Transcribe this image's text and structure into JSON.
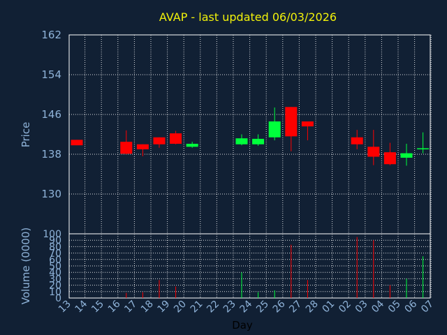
{
  "chart_data": {
    "type": "candlestick",
    "title": "AVAP - last updated 06/03/2026",
    "ylabel": "Price",
    "volume_label": "Volume (0000)",
    "xlabel": "Day",
    "grid": true,
    "colors": {
      "up": "#00ff3c",
      "down": "#ff0000",
      "background": "#112034",
      "title": "#f2f20a",
      "axis_text": "#8fb3d9"
    },
    "price_ylim": [
      122,
      162
    ],
    "price_ticks": [
      162,
      154,
      146,
      138,
      130
    ],
    "volume_ylim": [
      0,
      100
    ],
    "volume_ticks": [
      100,
      90,
      80,
      70,
      60,
      50,
      40,
      30,
      20,
      10,
      0
    ],
    "x_labels": [
      "13",
      "14",
      "15",
      "16",
      "17",
      "18",
      "19",
      "20",
      "21",
      "22",
      "23",
      "24",
      "25",
      "26",
      "27",
      "28",
      "01",
      "02",
      "03",
      "04",
      "05",
      "06",
      "07"
    ],
    "candles": [
      {
        "day": "13",
        "open": 140.9,
        "high": 140.9,
        "low": 139.8,
        "close": 139.8,
        "volume": 0
      },
      {
        "day": "16",
        "open": 140.5,
        "high": 142.8,
        "low": 138.0,
        "close": 138.1,
        "volume": 8
      },
      {
        "day": "17",
        "open": 140.0,
        "high": 140.0,
        "low": 137.6,
        "close": 139.0,
        "volume": 9
      },
      {
        "day": "18",
        "open": 141.4,
        "high": 141.4,
        "low": 139.3,
        "close": 140.0,
        "volume": 28
      },
      {
        "day": "19",
        "open": 142.2,
        "high": 142.7,
        "low": 140.0,
        "close": 140.1,
        "volume": 18
      },
      {
        "day": "20",
        "open": 139.5,
        "high": 140.5,
        "low": 139.3,
        "close": 140.1,
        "volume": 0
      },
      {
        "day": "23",
        "open": 140.0,
        "high": 142.0,
        "low": 139.8,
        "close": 141.2,
        "volume": 40
      },
      {
        "day": "24",
        "open": 140.0,
        "high": 142.0,
        "low": 139.7,
        "close": 141.1,
        "volume": 9
      },
      {
        "day": "25",
        "open": 141.4,
        "high": 147.4,
        "low": 140.8,
        "close": 144.6,
        "volume": 12
      },
      {
        "day": "26",
        "open": 147.5,
        "high": 147.5,
        "low": 138.6,
        "close": 141.6,
        "volume": 83
      },
      {
        "day": "27",
        "open": 144.6,
        "high": 144.6,
        "low": 140.8,
        "close": 143.6,
        "volume": 28
      },
      {
        "day": "02",
        "open": 141.4,
        "high": 142.9,
        "low": 139.0,
        "close": 140.0,
        "volume": 95
      },
      {
        "day": "03",
        "open": 139.5,
        "high": 142.9,
        "low": 135.8,
        "close": 137.5,
        "volume": 90
      },
      {
        "day": "04",
        "open": 138.4,
        "high": 140.3,
        "low": 135.8,
        "close": 136.0,
        "volume": 20
      },
      {
        "day": "05",
        "open": 137.3,
        "high": 140.1,
        "low": 135.7,
        "close": 138.2,
        "volume": 30
      },
      {
        "day": "06",
        "open": 139.0,
        "high": 142.4,
        "low": 138.2,
        "close": 139.2,
        "volume": 65
      }
    ]
  }
}
